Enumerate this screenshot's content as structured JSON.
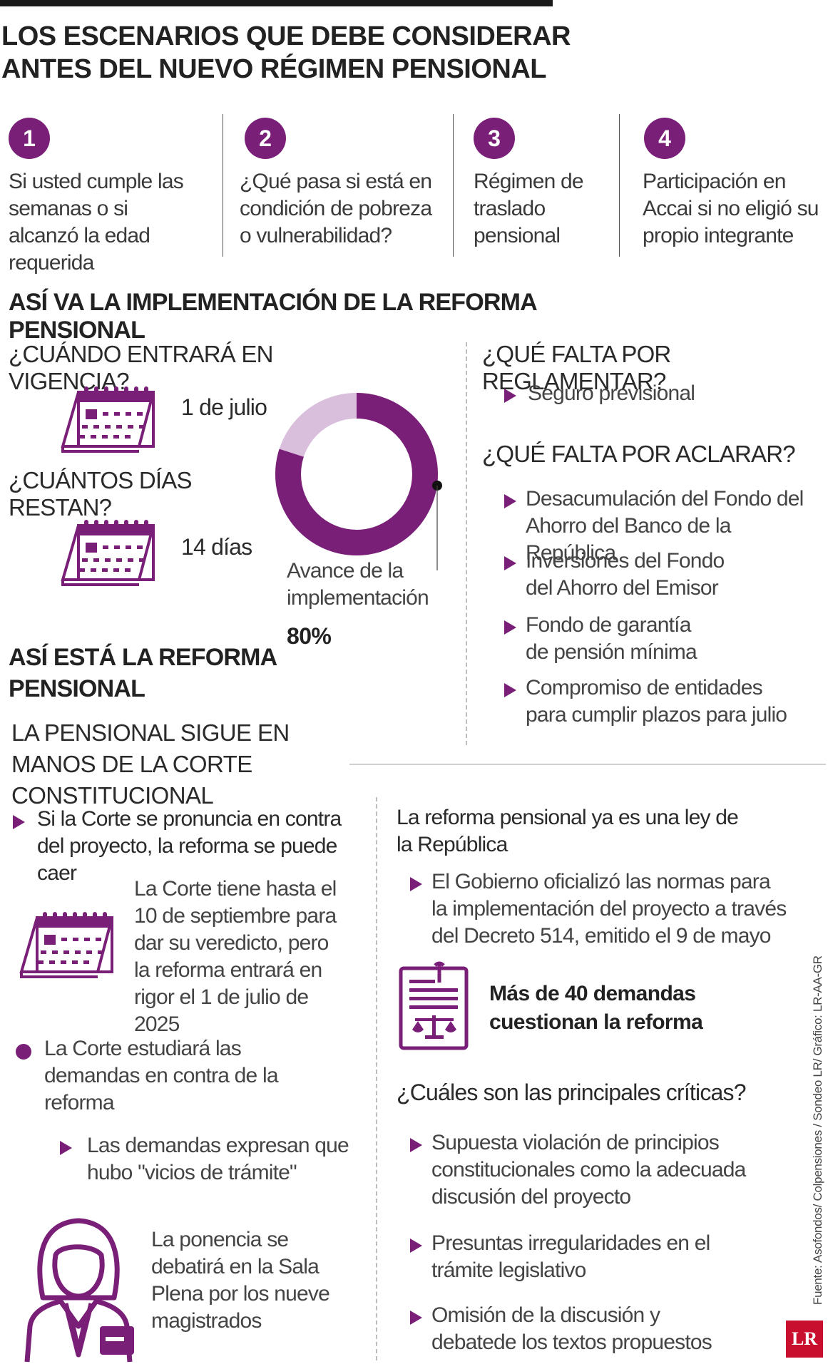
{
  "title": "LOS ESCENARIOS QUE DEBE CONSIDERAR ANTES DEL NUEVO RÉGIMEN PENSIONAL",
  "scenarios": [
    {
      "num": "1",
      "text": "Si usted cumple las semanas o si alcanzó la edad requerida"
    },
    {
      "num": "2",
      "text": "¿Qué pasa si está en condición de pobreza o vulnerabilidad?"
    },
    {
      "num": "3",
      "text": "Régimen de traslado pensional"
    },
    {
      "num": "4",
      "text": "Participación en Accai si no eligió su propio integrante"
    }
  ],
  "implementation": {
    "heading": "ASÍ VA LA IMPLEMENTACIÓN DE LA REFORMA PENSIONAL",
    "when_q": "¿CUÁNDO ENTRARÁ EN VIGENCIA?",
    "when_a": "1 de julio",
    "days_q": "¿CUÁNTOS DÍAS RESTAN?",
    "days_a": "14 días",
    "progress_label": "Avance de la implementación",
    "progress_value": "80%",
    "progress_fraction": 0.8,
    "colors": {
      "accent": "#7a1f78",
      "light": "#d9bfdc"
    },
    "regulate_q": "¿QUÉ FALTA POR REGLAMENTAR?",
    "regulate_items": [
      "Seguro previsional"
    ],
    "clarify_q": "¿QUÉ FALTA POR ACLARAR?",
    "clarify_items": [
      "Desacumulación del Fondo del Ahorro del Banco de la República",
      "Inversiones del Fondo del Ahorro del Emisor",
      "Fondo de garantía de pensión mínima",
      "Compromiso de entidades para cumplir plazos para julio"
    ]
  },
  "reform_status": {
    "heading": "ASÍ ESTÁ LA REFORMA PENSIONAL",
    "subheading": "LA PENSIONAL SIGUE EN MANOS DE LA CORTE CONSTITUCIONAL",
    "court_against": "Si la Corte se pronuncia en contra del proyecto, la reforma se puede caer",
    "court_deadline": "La Corte tiene hasta el 10 de septiembre para dar su veredicto, pero la reforma entrará en rigor el 1 de julio de 2025",
    "court_study": "La Corte estudiará las demandas en contra de la reforma",
    "demands_vices": "Las demandas expresan que hubo \"vicios de trámite\"",
    "ponencia": "La ponencia se debatirá en la Sala Plena por los nueve magistrados"
  },
  "law": {
    "heading": "La reforma pensional ya es una ley de la República",
    "decree": "El Gobierno oficializó las normas para la implementación del proyecto a través del Decreto 514, emitido el 9 de mayo",
    "demands": "Más de 40 demandas cuestionan la reforma",
    "critics_q": "¿Cuáles son las principales críticas?",
    "critics": [
      "Supuesta violación de principios constitucionales como la adecuada discusión del proyecto",
      "Presuntas irregularidades en el trámite legislativo",
      "Omisión de la discusión y debatede los textos propuestos"
    ]
  },
  "source": "Fuente: Asofondos/ Colpensiones / Sondeo LR/ Gráfico: LR-AA-GR",
  "logo": "LR",
  "icons": [
    "calendar-icon",
    "calendar-icon",
    "calendar-icon",
    "legal-document-icon",
    "judge-icon"
  ]
}
